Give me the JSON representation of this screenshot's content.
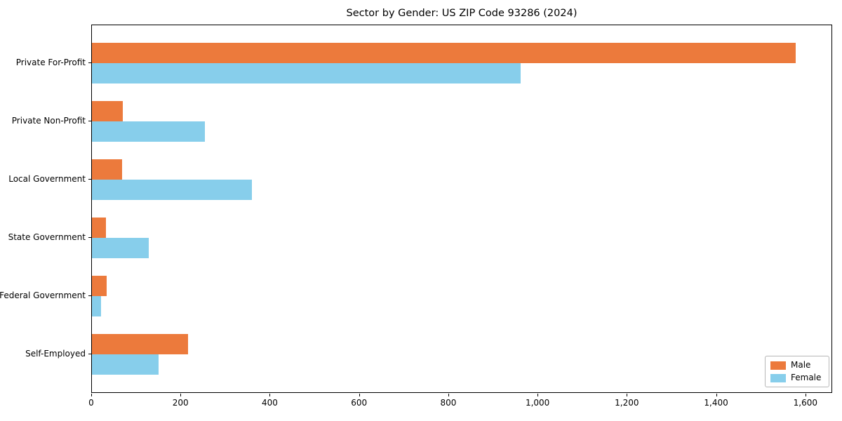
{
  "title": "Sector by Gender: US ZIP Code 93286 (2024)",
  "legend": {
    "entries": [
      {
        "label": "Male",
        "color": "#ec7a3c"
      },
      {
        "label": "Female",
        "color": "#87ceeb"
      }
    ]
  },
  "chart_data": {
    "type": "bar",
    "orientation": "horizontal",
    "title": "Sector by Gender: US ZIP Code 93286 (2024)",
    "categories": [
      "Private For-Profit",
      "Private Non-Profit",
      "Local Government",
      "State Government",
      "Federal Government",
      "Self-Employed"
    ],
    "series": [
      {
        "name": "Male",
        "color": "#ec7a3c",
        "values": [
          1580,
          69,
          68,
          31,
          33,
          216
        ]
      },
      {
        "name": "Female",
        "color": "#87ceeb",
        "values": [
          963,
          253,
          359,
          127,
          21,
          149
        ]
      }
    ],
    "xlabel": "",
    "ylabel": "",
    "xlim": [
      0,
      1660
    ],
    "xtick_values": [
      0,
      200,
      400,
      600,
      800,
      1000,
      1200,
      1400,
      1600
    ],
    "xtick_labels": [
      "0",
      "200",
      "400",
      "600",
      "800",
      "1,000",
      "1,200",
      "1,400",
      "1,600"
    ],
    "grid": false,
    "legend_position": "lower right"
  }
}
